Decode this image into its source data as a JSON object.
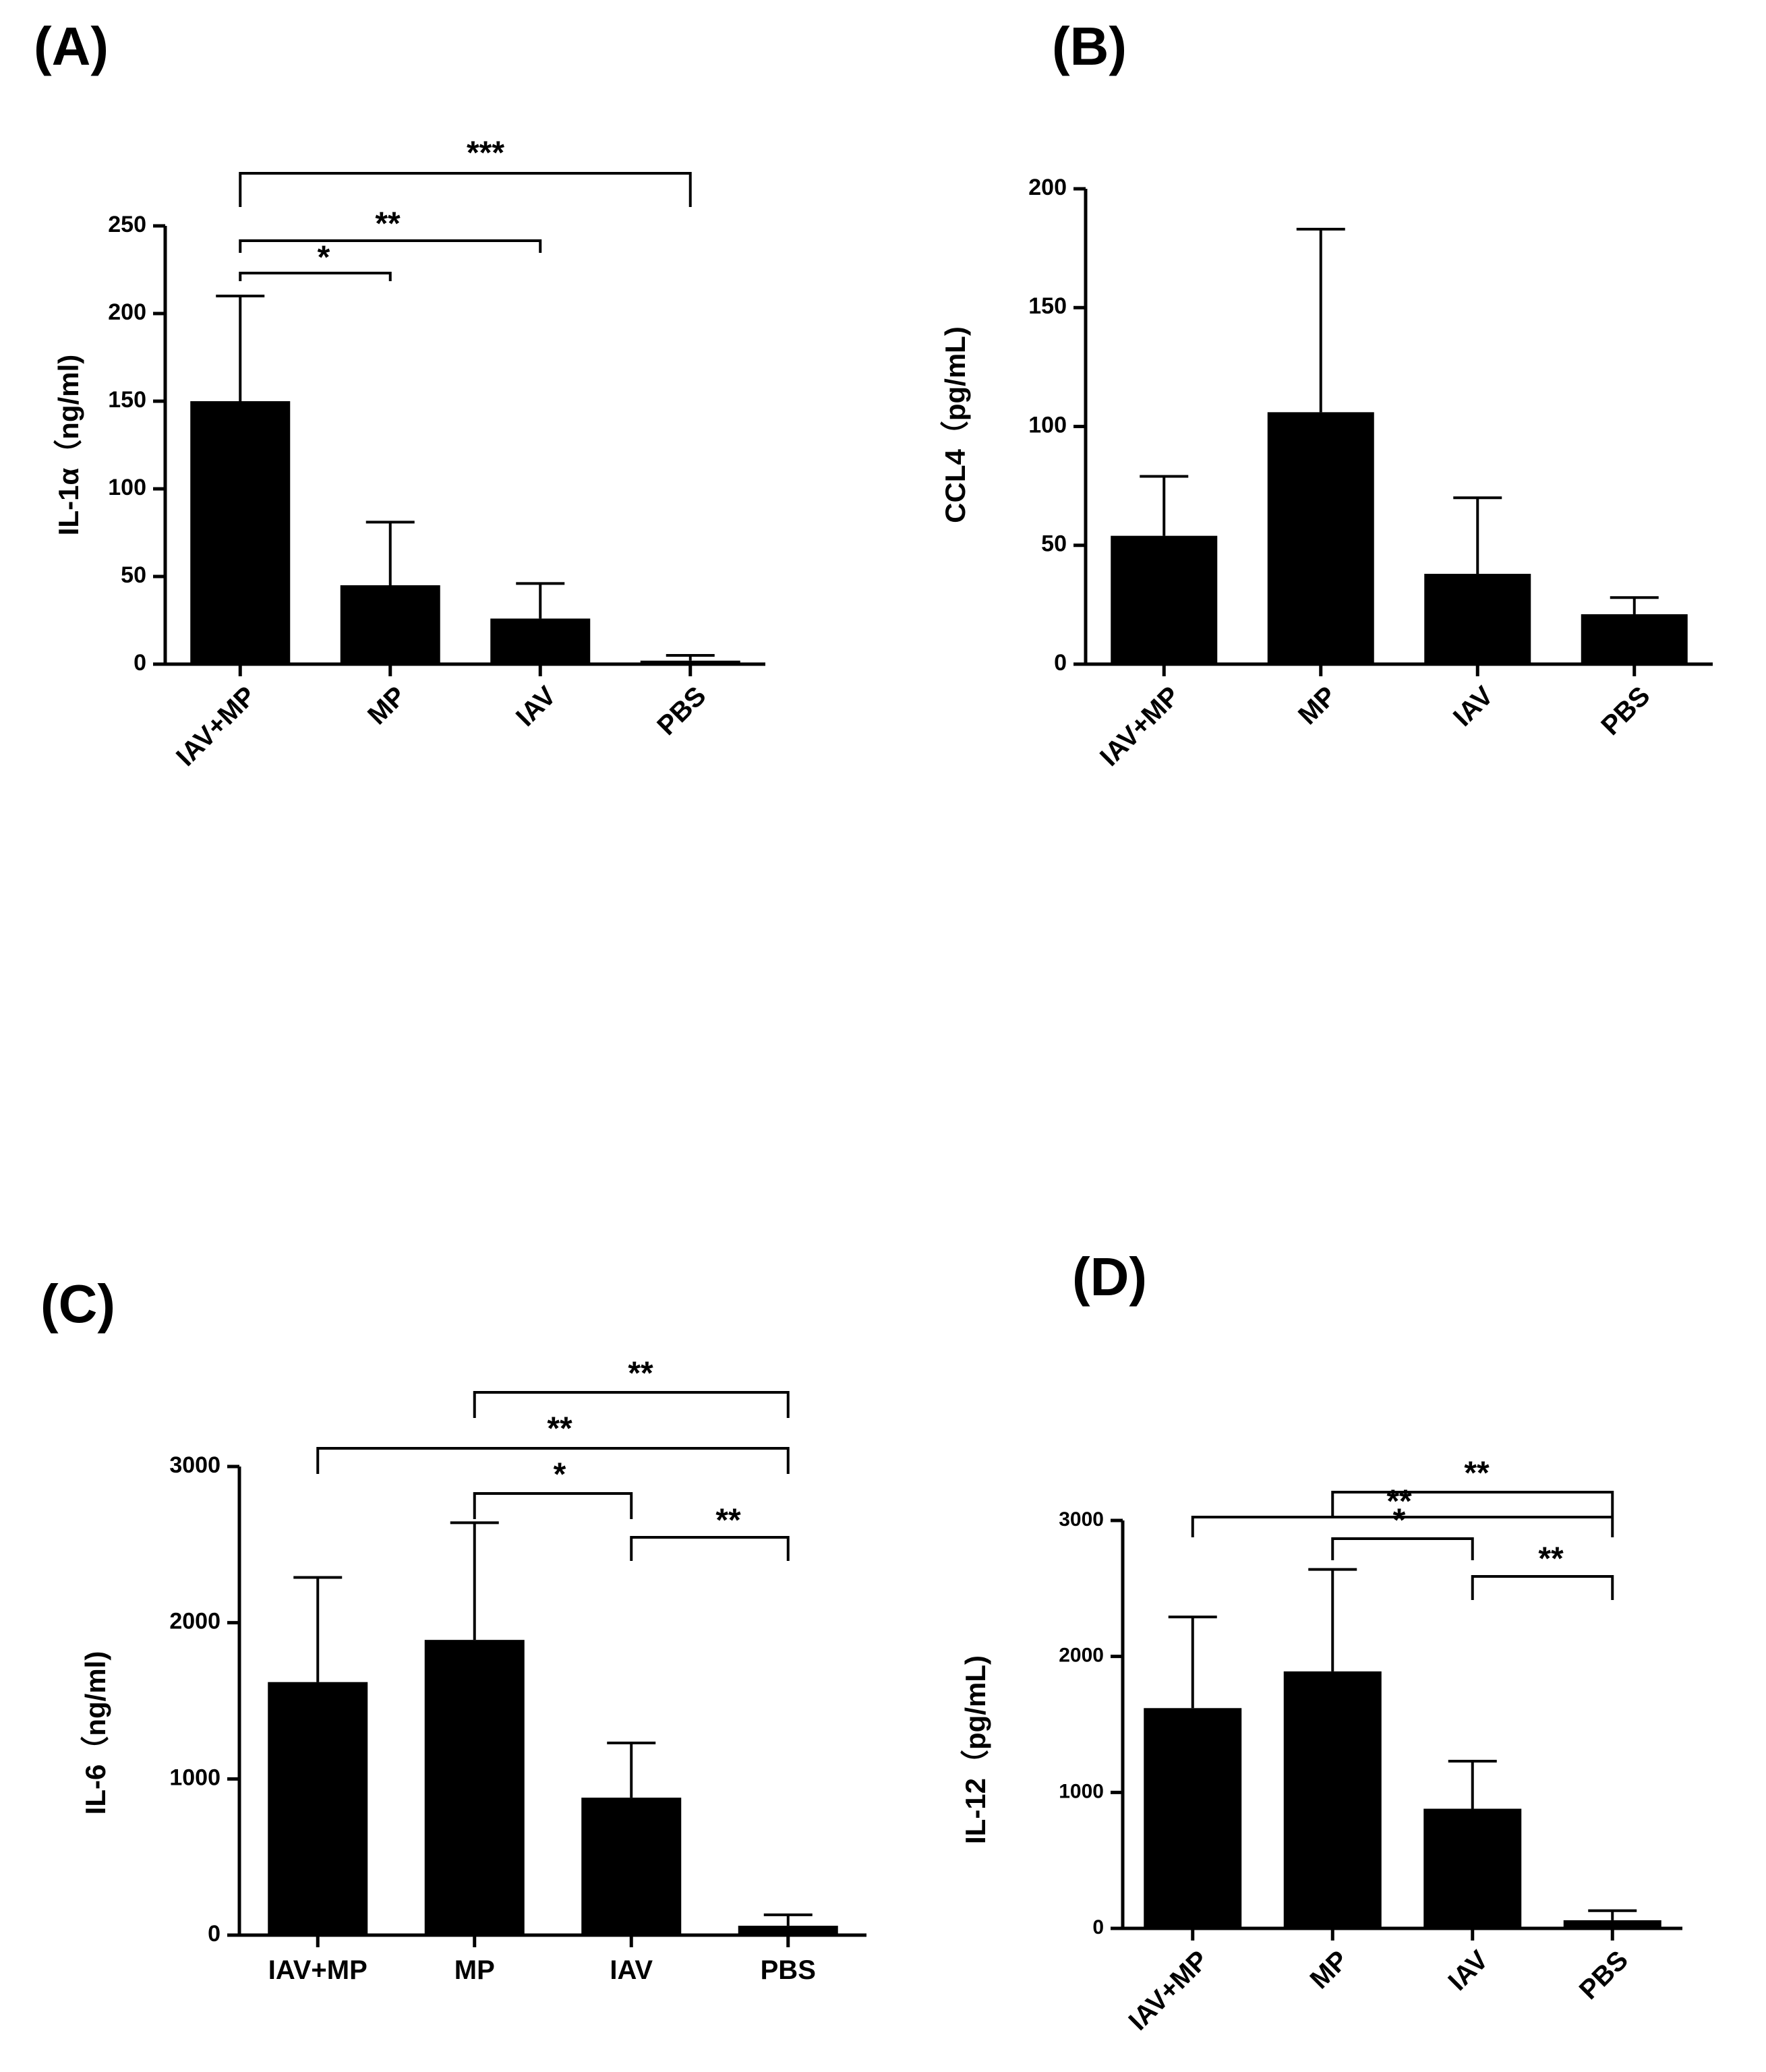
{
  "chart_data": [
    {
      "panel_label": "(A)",
      "type": "bar",
      "categories": [
        "IAV+MP",
        "MP",
        "IAV",
        "PBS"
      ],
      "values": [
        150,
        45,
        26,
        2
      ],
      "errors": [
        60,
        36,
        20,
        3
      ],
      "ylabel": "IL-1α（ng/ml)",
      "ylim": [
        0,
        250
      ],
      "yticks": [
        0,
        50,
        100,
        150,
        200,
        250
      ],
      "xtick_rotation": "diagonal",
      "grid": false,
      "significance": [
        {
          "from": 0,
          "to": 1,
          "label": "*"
        },
        {
          "from": 0,
          "to": 2,
          "label": "**"
        },
        {
          "from": 0,
          "to": 3,
          "label": "***"
        }
      ]
    },
    {
      "panel_label": "(B)",
      "type": "bar",
      "categories": [
        "IAV+MP",
        "MP",
        "IAV",
        "PBS"
      ],
      "values": [
        54,
        106,
        38,
        21
      ],
      "errors": [
        25,
        77,
        32,
        7
      ],
      "ylabel": "CCL4（pg/mL)",
      "ylim": [
        0,
        200
      ],
      "yticks": [
        0,
        50,
        100,
        150,
        200
      ],
      "xtick_rotation": "diagonal",
      "grid": false,
      "significance": []
    },
    {
      "panel_label": "(C)",
      "type": "bar",
      "categories": [
        "IAV+MP",
        "MP",
        "IAV",
        "PBS"
      ],
      "values": [
        1620,
        1890,
        880,
        60
      ],
      "errors": [
        670,
        750,
        350,
        70
      ],
      "ylabel": "IL-6（ng/ml)",
      "ylim": [
        0,
        3000
      ],
      "yticks": [
        0,
        1000,
        2000,
        3000
      ],
      "xtick_rotation": "horizontal",
      "grid": false,
      "significance": [
        {
          "from": 2,
          "to": 3,
          "label": "**"
        },
        {
          "from": 1,
          "to": 2,
          "label": "*"
        },
        {
          "from": 0,
          "to": 3,
          "label": "**"
        },
        {
          "from": 1,
          "to": 3,
          "label": "**"
        }
      ]
    },
    {
      "panel_label": "(D)",
      "type": "bar",
      "categories": [
        "IAV+MP",
        "MP",
        "IAV",
        "PBS"
      ],
      "values": [
        1620,
        1890,
        880,
        60
      ],
      "errors": [
        670,
        750,
        350,
        70
      ],
      "ylabel": "IL-12（pg/mL)",
      "ylim": [
        0,
        3000
      ],
      "yticks": [
        0,
        1000,
        2000,
        3000
      ],
      "xtick_rotation": "diagonal",
      "grid": false,
      "significance": [
        {
          "from": 2,
          "to": 3,
          "label": "**"
        },
        {
          "from": 1,
          "to": 2,
          "label": "*"
        },
        {
          "from": 0,
          "to": 3,
          "label": "**"
        },
        {
          "from": 1,
          "to": 3,
          "label": "**"
        }
      ]
    }
  ]
}
